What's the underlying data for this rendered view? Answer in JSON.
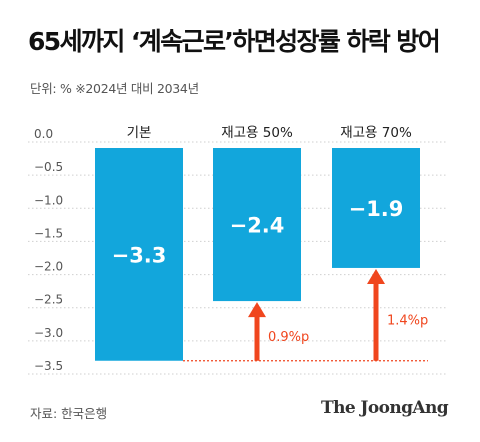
{
  "title": "65세까지 ‘계속근로’하면성장률 하락 방어",
  "unit_note": "단위: %   ※2024년 대비 2034년",
  "source": "자료: 한국은행",
  "logo": "The JoongAng",
  "colors": {
    "bar": "#12a6dc",
    "arrow": "#f0461e",
    "bar_label": "#ffffff",
    "grid": "#cfcfcf",
    "axis_text": "#555555"
  },
  "chart_data": {
    "type": "bar",
    "categories": [
      "기본",
      "재고용 50%",
      "재고용 70%"
    ],
    "values": [
      -3.3,
      -2.4,
      -1.9
    ],
    "value_labels": [
      "−3.3",
      "−2.4",
      "−1.9"
    ],
    "ylim": [
      -3.5,
      0.0
    ],
    "yticks": [
      "0.0",
      "−0.5",
      "−1.0",
      "−1.5",
      "−2.0",
      "−2.5",
      "−3.0",
      "−3.5"
    ],
    "ytick_values": [
      0.0,
      -0.5,
      -1.0,
      -1.5,
      -2.0,
      -2.5,
      -3.0,
      -3.5
    ],
    "grid": true,
    "annotations": [
      {
        "category_index": 1,
        "from": -3.3,
        "to": -2.4,
        "label": "0.9%p"
      },
      {
        "category_index": 2,
        "from": -3.3,
        "to": -1.9,
        "label": "1.4%p"
      }
    ],
    "baseline_dotted_at": -3.3
  }
}
